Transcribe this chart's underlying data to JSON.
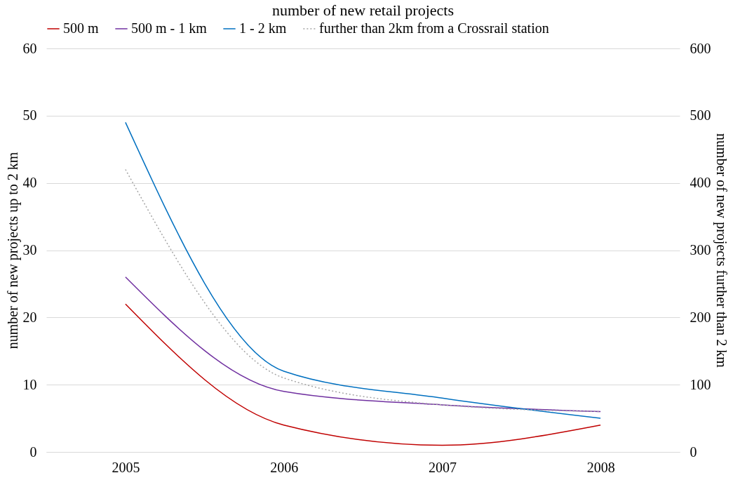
{
  "chart_data": {
    "type": "line",
    "title": "number of new retail projects",
    "ylabel": "number of new projects up to 2 km",
    "y2label": "number of new projects further than 2 km",
    "categories": [
      "2005",
      "2006",
      "2007",
      "2008"
    ],
    "series": [
      {
        "name": "500 m",
        "color": "#c00000",
        "values": [
          22,
          4,
          1,
          4
        ]
      },
      {
        "name": "500 m - 1 km",
        "color": "#7030a0",
        "values": [
          26,
          9,
          7,
          6
        ]
      },
      {
        "name": "1 - 2 km",
        "color": "#0070c0",
        "values": [
          49,
          12,
          8,
          5
        ]
      },
      {
        "name": "further than 2km from a Crossrail station",
        "color": "#a5a5a5",
        "values": [
          420,
          110,
          70,
          60
        ],
        "axis": "y2",
        "line_style": "dotted"
      }
    ],
    "ylim": [
      0,
      60
    ],
    "yticks": [
      0,
      10,
      20,
      30,
      40,
      50,
      60
    ],
    "y2lim": [
      0,
      600
    ],
    "y2ticks": [
      0,
      100,
      200,
      300,
      400,
      500,
      600
    ],
    "grid": "y",
    "legend": "top"
  }
}
